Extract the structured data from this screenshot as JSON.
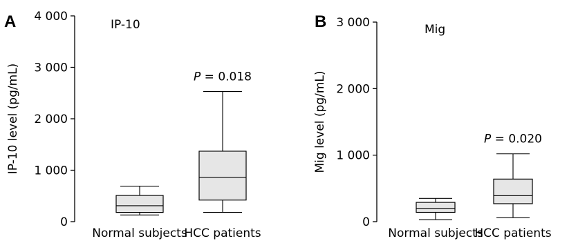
{
  "chart_data": [
    {
      "type": "box",
      "panel_letter": "A",
      "marker": "IP-10",
      "ylabel": "IP-10 level (pg/mL)",
      "ylim": [
        0,
        4000
      ],
      "yticks": [
        0,
        1000,
        2000,
        3000,
        4000
      ],
      "ytick_labels": [
        "0",
        "1 000",
        "2 000",
        "3 000",
        "4 000"
      ],
      "categories": [
        "Normal subjects",
        "HCC patients"
      ],
      "boxes": [
        {
          "category": "Normal subjects",
          "min": 130,
          "q1": 180,
          "median": 310,
          "q3": 510,
          "max": 690
        },
        {
          "category": "HCC patients",
          "min": 180,
          "q1": 420,
          "median": 860,
          "q3": 1370,
          "max": 2530
        }
      ],
      "annotation": {
        "p_label": "P",
        "text": " = 0.018",
        "category": "HCC patients"
      }
    },
    {
      "type": "box",
      "panel_letter": "B",
      "marker": "Mig",
      "ylabel": "Mig level (pg/mL)",
      "ylim": [
        0,
        3000
      ],
      "yticks": [
        0,
        1000,
        2000,
        3000
      ],
      "ytick_labels": [
        "0",
        "1 000",
        "2 000",
        "3 000"
      ],
      "categories": [
        "Normal subjects",
        "HCC patients"
      ],
      "boxes": [
        {
          "category": "Normal subjects",
          "min": 30,
          "q1": 140,
          "median": 200,
          "q3": 290,
          "max": 350
        },
        {
          "category": "HCC patients",
          "min": 60,
          "q1": 270,
          "median": 390,
          "q3": 640,
          "max": 1020
        }
      ],
      "annotation": {
        "p_label": "P",
        "text": " = 0.020",
        "category": "HCC patients"
      }
    }
  ]
}
